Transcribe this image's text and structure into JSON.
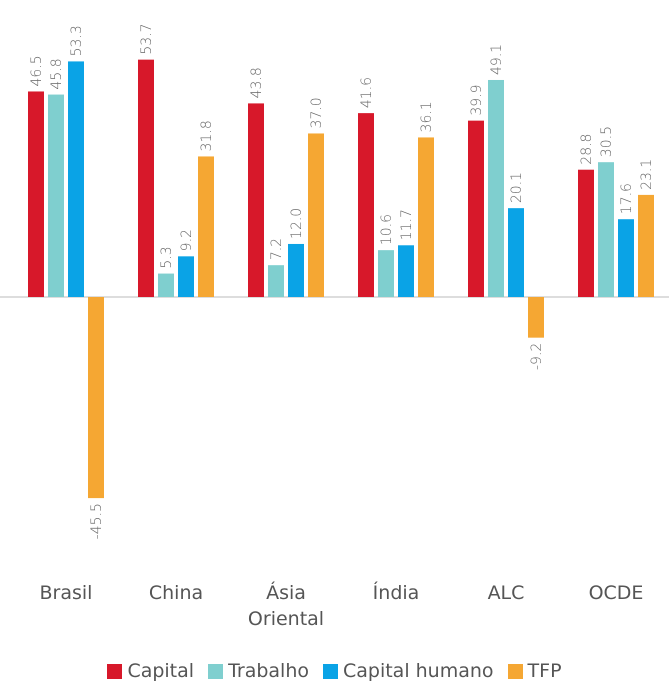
{
  "chart_data": {
    "type": "bar",
    "categories": [
      "Brasil",
      "China",
      "Ásia Oriental",
      "Índia",
      "ALC",
      "OCDE"
    ],
    "series": [
      {
        "name": "Capital",
        "color": "#d7182a",
        "values": [
          46.5,
          53.7,
          43.8,
          41.6,
          39.9,
          28.8
        ],
        "value_labels": [
          "46.5",
          "53.7",
          "43.8",
          "41.6",
          "39.9",
          "28.8"
        ]
      },
      {
        "name": "Trabalho",
        "color": "#7fcfcf",
        "values": [
          45.8,
          5.3,
          7.2,
          10.6,
          49.1,
          30.5
        ],
        "value_labels": [
          "45.8",
          "5.3",
          "7.2",
          "10.6",
          "49.1",
          "30.5"
        ]
      },
      {
        "name": "Capital humano",
        "color": "#0aa3e6",
        "values": [
          53.3,
          9.2,
          12.0,
          11.7,
          20.1,
          17.6
        ],
        "value_labels": [
          "53.3",
          "9.2",
          "12.0",
          "11.7",
          "20.1",
          "17.6"
        ]
      },
      {
        "name": "TFP",
        "color": "#f5a733",
        "values": [
          -45.5,
          31.8,
          37.0,
          36.1,
          -9.2,
          23.1
        ],
        "value_labels": [
          "-45.5",
          "31.8",
          "37.0",
          "36.1",
          "-9.2",
          "23.1"
        ]
      }
    ]
  }
}
